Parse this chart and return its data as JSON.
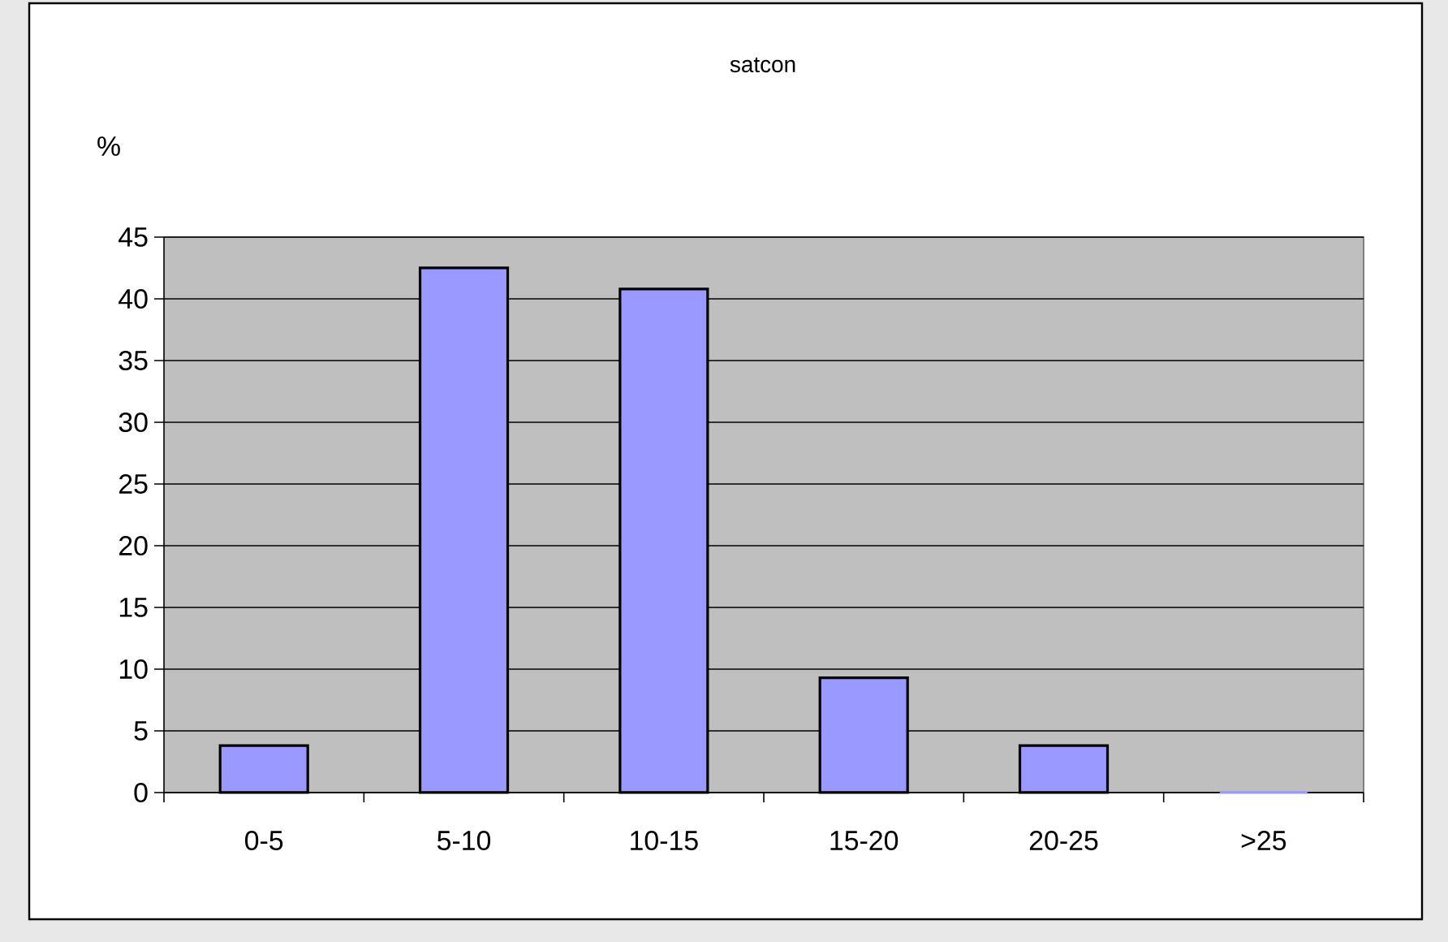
{
  "chart_data": {
    "type": "bar",
    "title": "satcon",
    "ylabel": "%",
    "categories": [
      "0-5",
      "5-10",
      "10-15",
      "15-20",
      "20-25",
      ">25"
    ],
    "values": [
      3.8,
      42.5,
      40.8,
      9.3,
      3.8,
      0
    ],
    "color": "#9999ff",
    "ylim": [
      0,
      45
    ],
    "yticks": [
      0,
      5,
      10,
      15,
      20,
      25,
      30,
      35,
      40,
      45
    ],
    "grid": "y"
  }
}
